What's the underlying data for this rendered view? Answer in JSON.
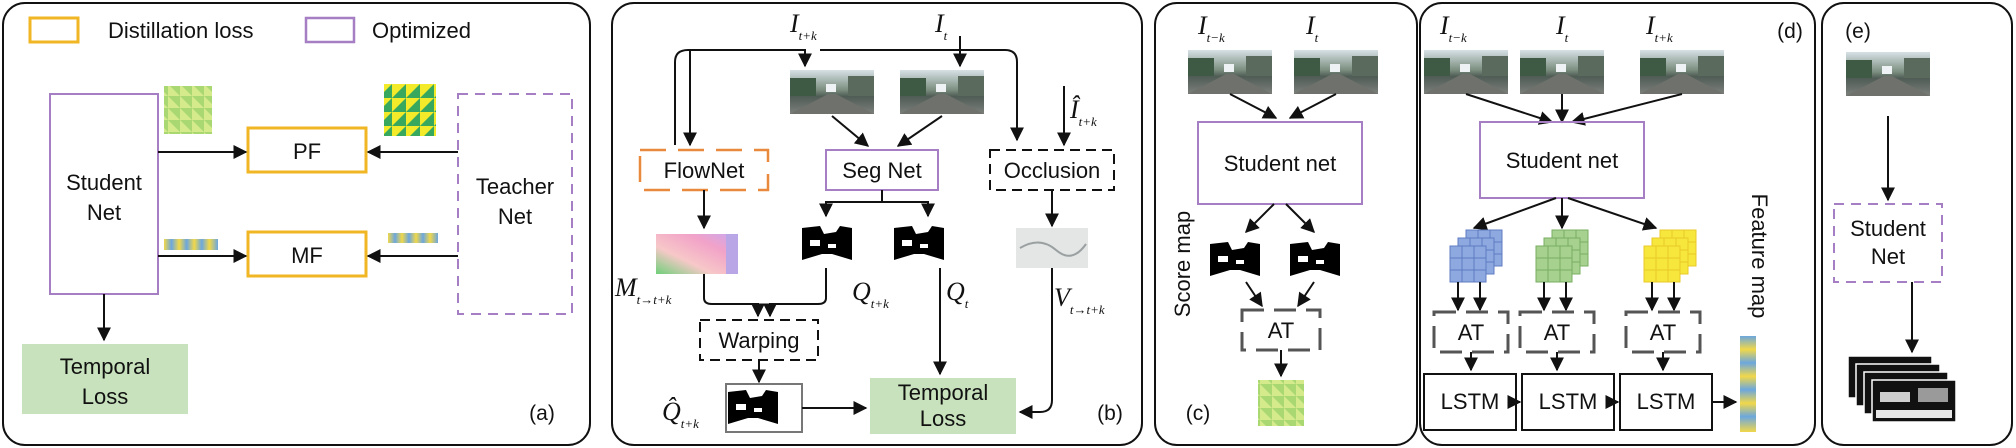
{
  "legend": {
    "distillation_loss": "Distillation  loss",
    "optimized": "Optimized"
  },
  "colors": {
    "distillation": "#f0b623",
    "optimized": "#a57ec4",
    "flownet": "#e8893d",
    "loss_fill": "#c8e2bd",
    "grid_blue": "#8ea8e0",
    "grid_green": "#a6d18f",
    "grid_yellow": "#f7e63c"
  },
  "panel_a": {
    "student": [
      "Student",
      "Net"
    ],
    "teacher": [
      "Teacher",
      "Net"
    ],
    "pf": "PF",
    "mf": "MF",
    "temporal_loss": [
      "Temporal",
      "Loss"
    ],
    "tag": "(a)"
  },
  "panel_b": {
    "flownet": "FlowNet",
    "segnet": "Seg Net",
    "occlusion": "Occlusion",
    "warping": "Warping",
    "temporal_loss": [
      "Temporal",
      "Loss"
    ],
    "tag": "(b)"
  },
  "panel_c": {
    "student": "Student net",
    "score_map": "Score map",
    "at": "AT",
    "tag": "(c)"
  },
  "panel_d": {
    "student": "Student net",
    "feature_map": "Feature map",
    "at": "AT",
    "lstm": "LSTM",
    "tag": "(d)"
  },
  "panel_e": {
    "student": [
      "Student",
      "Net"
    ],
    "tag": "(e)"
  }
}
